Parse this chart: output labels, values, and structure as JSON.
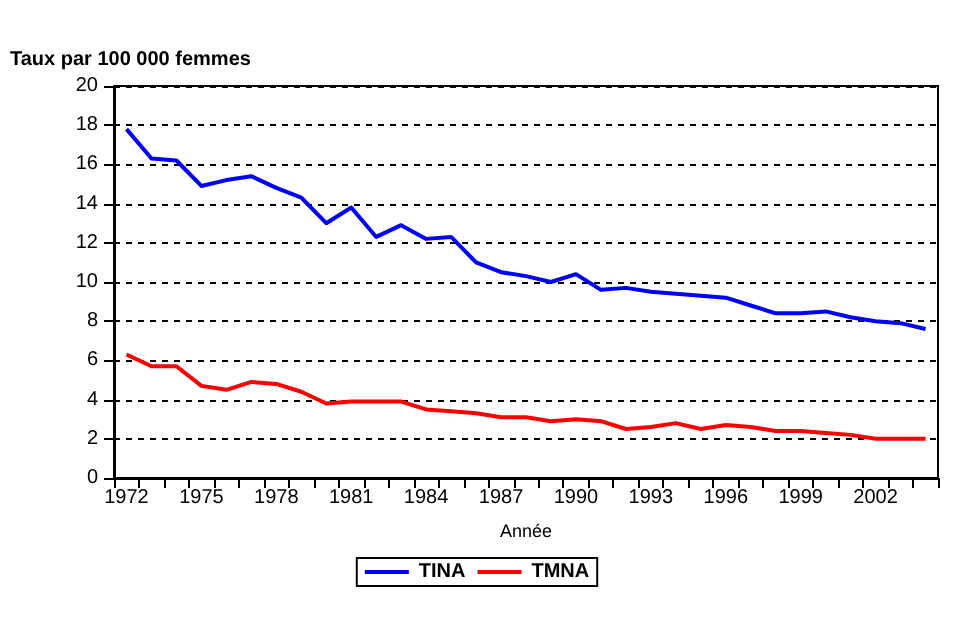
{
  "chart_data": {
    "type": "line",
    "ylabel": "Taux par 100 000 femmes",
    "xlabel": "Année",
    "categories": [
      "1972",
      null,
      null,
      "1975",
      null,
      null,
      "1978",
      null,
      null,
      "1981",
      null,
      null,
      "1984",
      null,
      null,
      "1987",
      null,
      null,
      "1990",
      null,
      null,
      "1993",
      null,
      null,
      "1996",
      null,
      null,
      "1999",
      null,
      null,
      "2002",
      null,
      null
    ],
    "series": [
      {
        "name": "TINA",
        "color": "#0000ff",
        "values": [
          17.8,
          16.3,
          16.2,
          14.9,
          15.2,
          15.4,
          14.8,
          14.3,
          13.0,
          13.8,
          12.3,
          12.9,
          12.2,
          12.3,
          11.0,
          10.5,
          10.3,
          10.0,
          10.4,
          9.6,
          9.7,
          9.5,
          9.4,
          9.3,
          9.2,
          8.8,
          8.4,
          8.4,
          8.5,
          8.2,
          8.0,
          7.9,
          7.6
        ]
      },
      {
        "name": "TMNA",
        "color": "#ff0000",
        "values": [
          6.3,
          5.7,
          5.7,
          4.7,
          4.5,
          4.9,
          4.8,
          4.4,
          3.8,
          3.9,
          3.9,
          3.9,
          3.5,
          3.4,
          3.3,
          3.1,
          3.1,
          2.9,
          3.0,
          2.9,
          2.5,
          2.6,
          2.8,
          2.5,
          2.7,
          2.6,
          2.4,
          2.4,
          2.3,
          2.2,
          2.0,
          2.0,
          2.0
        ]
      }
    ],
    "ylim": [
      0,
      20
    ],
    "yticks": [
      0,
      2,
      4,
      6,
      8,
      10,
      12,
      14,
      16,
      18,
      20
    ],
    "grid": "y",
    "legend": "bottom",
    "marker": "none",
    "line_style": "solid"
  }
}
